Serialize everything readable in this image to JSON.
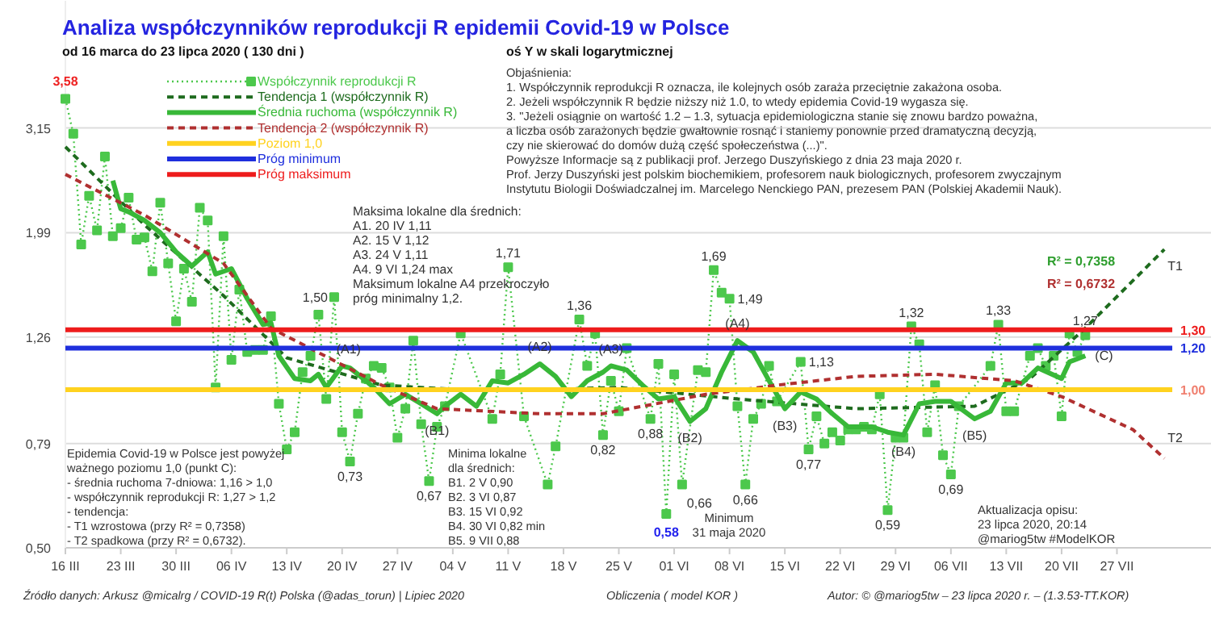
{
  "chart_data": {
    "type": "line",
    "title": "Analiza współczynników reprodukcji R epidemii Covid-19 w Polsce",
    "subtitle": "od 16 marca do 23 lipca 2020    ( 130 dni )",
    "log": true,
    "grid": "y",
    "legend": "top left",
    "xlim": [
      "2020-03-16",
      "2020-08-08"
    ],
    "ylim": [
      0.5,
      5.5
    ],
    "xticks": [
      {
        "value": "2020-03-16",
        "label": "16 III"
      },
      {
        "value": "2020-03-23",
        "label": "23 III"
      },
      {
        "value": "2020-03-30",
        "label": "30 III"
      },
      {
        "value": "2020-04-06",
        "label": "06 IV"
      },
      {
        "value": "2020-04-13",
        "label": "13 IV"
      },
      {
        "value": "2020-04-20",
        "label": "20 IV"
      },
      {
        "value": "2020-04-27",
        "label": "27 IV"
      },
      {
        "value": "2020-05-04",
        "label": "04 V"
      },
      {
        "value": "2020-05-11",
        "label": "11 V"
      },
      {
        "value": "2020-05-18",
        "label": "18 V"
      },
      {
        "value": "2020-05-25",
        "label": "25 V"
      },
      {
        "value": "2020-06-01",
        "label": "01 VI"
      },
      {
        "value": "2020-06-08",
        "label": "08 VI"
      },
      {
        "value": "2020-06-15",
        "label": "15 VI"
      },
      {
        "value": "2020-06-22",
        "label": "22 VI"
      },
      {
        "value": "2020-06-29",
        "label": "29 VI"
      },
      {
        "value": "2020-07-06",
        "label": "06 VII"
      },
      {
        "value": "2020-07-13",
        "label": "13 VII"
      },
      {
        "value": "2020-07-20",
        "label": "20 VII"
      },
      {
        "value": "2020-07-27",
        "label": "27 VII"
      }
    ],
    "yticks": [
      {
        "value": 0.5,
        "label": "0,50"
      },
      {
        "value": 0.79,
        "label": "0,79"
      },
      {
        "value": 1.26,
        "label": "1,26"
      },
      {
        "value": 1.99,
        "label": "1,99"
      },
      {
        "value": 3.15,
        "label": "3,15"
      }
    ],
    "series": [
      {
        "name": "Współczynnik reprodukcji R",
        "color": "#4cc84c",
        "line_style": "dotted",
        "marker": "square",
        "x": [
          "2020-03-16",
          "2020-03-17",
          "2020-03-18",
          "2020-03-19",
          "2020-03-20",
          "2020-03-21",
          "2020-03-22",
          "2020-03-23",
          "2020-03-24",
          "2020-03-25",
          "2020-03-26",
          "2020-03-27",
          "2020-03-28",
          "2020-03-29",
          "2020-03-30",
          "2020-03-31",
          "2020-04-01",
          "2020-04-02",
          "2020-04-03",
          "2020-04-04",
          "2020-04-05",
          "2020-04-06",
          "2020-04-07",
          "2020-04-08",
          "2020-04-09",
          "2020-04-10",
          "2020-04-11",
          "2020-04-12",
          "2020-04-13",
          "2020-04-14",
          "2020-04-15",
          "2020-04-16",
          "2020-04-17",
          "2020-04-18",
          "2020-04-19",
          "2020-04-20",
          "2020-04-21",
          "2020-04-22",
          "2020-04-23",
          "2020-04-24",
          "2020-04-25",
          "2020-04-26",
          "2020-04-27",
          "2020-04-28",
          "2020-04-29",
          "2020-04-30",
          "2020-05-01",
          "2020-05-02",
          "2020-05-03",
          "2020-05-05",
          "2020-05-09",
          "2020-05-10",
          "2020-05-11",
          "2020-05-13",
          "2020-05-16",
          "2020-05-17",
          "2020-05-20",
          "2020-05-21",
          "2020-05-22",
          "2020-05-23",
          "2020-05-24",
          "2020-05-25",
          "2020-05-26",
          "2020-05-29",
          "2020-05-30",
          "2020-05-31",
          "2020-06-01",
          "2020-06-02",
          "2020-06-04",
          "2020-06-05",
          "2020-06-06",
          "2020-06-07",
          "2020-06-08",
          "2020-06-09",
          "2020-06-10",
          "2020-06-11",
          "2020-06-12",
          "2020-06-13",
          "2020-06-14",
          "2020-06-17",
          "2020-06-18",
          "2020-06-19",
          "2020-06-20",
          "2020-06-21",
          "2020-06-22",
          "2020-06-23",
          "2020-06-24",
          "2020-06-25",
          "2020-06-26",
          "2020-06-27",
          "2020-06-28",
          "2020-06-29",
          "2020-06-30",
          "2020-07-01",
          "2020-07-02",
          "2020-07-03",
          "2020-07-04",
          "2020-07-05",
          "2020-07-06",
          "2020-07-07",
          "2020-07-11",
          "2020-07-12",
          "2020-07-13",
          "2020-07-14",
          "2020-07-16",
          "2020-07-17",
          "2020-07-18",
          "2020-07-19",
          "2020-07-20",
          "2020-07-21",
          "2020-07-22",
          "2020-07-23"
        ],
        "values": [
          3.58,
          3.07,
          1.89,
          2.34,
          2.01,
          2.78,
          1.96,
          2.03,
          2.32,
          1.93,
          1.95,
          1.68,
          2.27,
          1.74,
          1.35,
          1.7,
          1.47,
          2.22,
          2.1,
          1.01,
          1.96,
          1.14,
          1.55,
          1.18,
          1.19,
          1.19,
          1.38,
          0.94,
          0.77,
          0.83,
          1.08,
          1.16,
          1.39,
          0.96,
          1.5,
          0.83,
          0.73,
          0.9,
          1.05,
          1.11,
          1.1,
          1.01,
          0.81,
          0.92,
          1.24,
          0.86,
          0.67,
          0.85,
          0.93,
          1.28,
          0.88,
          1.07,
          1.71,
          0.89,
          0.66,
          0.78,
          1.36,
          1.11,
          1.28,
          0.82,
          1.04,
          0.91,
          1.2,
          0.88,
          1.12,
          0.58,
          1.07,
          0.66,
          1.09,
          1.08,
          1.69,
          1.53,
          1.49,
          0.93,
          0.66,
          0.88,
          0.94,
          1.11,
          0.95,
          1.13,
          0.77,
          0.89,
          0.79,
          0.83,
          0.8,
          0.84,
          0.84,
          0.85,
          0.84,
          0.98,
          0.59,
          0.81,
          0.81,
          1.32,
          1.22,
          0.83,
          1.02,
          0.75,
          0.69,
          0.93,
          1.11,
          1.33,
          0.91,
          0.91,
          1.16,
          1.2,
          1.11,
          1.16,
          0.89,
          1.28,
          1.18,
          1.27
        ]
      },
      {
        "name": "Tendencja 1 (współczynnik R)",
        "color": "#1e6b1e",
        "line_style": "dashed",
        "x": [
          "2020-03-16",
          "2020-03-26",
          "2020-04-05",
          "2020-04-13",
          "2020-04-25",
          "2020-05-05",
          "2020-05-15",
          "2020-05-25",
          "2020-06-09",
          "2020-06-24",
          "2020-07-09",
          "2020-07-16",
          "2020-07-23",
          "2020-08-02"
        ],
        "values": [
          2.9,
          2.06,
          1.51,
          1.15,
          1.02,
          1.0,
          1.0,
          1.01,
          0.96,
          0.92,
          0.93,
          1.05,
          1.31,
          1.85
        ]
      },
      {
        "name": "Średnia ruchoma (współczynnik R)",
        "color": "#38b838",
        "line_style": "solid",
        "x": [
          "2020-03-22",
          "2020-03-23",
          "2020-03-24",
          "2020-03-26",
          "2020-03-28",
          "2020-03-30",
          "2020-04-01",
          "2020-04-03",
          "2020-04-04",
          "2020-04-06",
          "2020-04-08",
          "2020-04-10",
          "2020-04-11",
          "2020-04-12",
          "2020-04-14",
          "2020-04-16",
          "2020-04-17",
          "2020-04-18",
          "2020-04-20",
          "2020-04-21",
          "2020-04-23",
          "2020-04-24",
          "2020-04-26",
          "2020-04-28",
          "2020-04-30",
          "2020-05-02",
          "2020-05-03",
          "2020-05-05",
          "2020-05-07",
          "2020-05-09",
          "2020-05-11",
          "2020-05-13",
          "2020-05-15",
          "2020-05-17",
          "2020-05-19",
          "2020-05-21",
          "2020-05-23",
          "2020-05-24",
          "2020-05-26",
          "2020-05-28",
          "2020-05-30",
          "2020-06-01",
          "2020-06-03",
          "2020-06-05",
          "2020-06-07",
          "2020-06-09",
          "2020-06-11",
          "2020-06-13",
          "2020-06-15",
          "2020-06-17",
          "2020-06-19",
          "2020-06-21",
          "2020-06-23",
          "2020-06-26",
          "2020-06-28",
          "2020-06-30",
          "2020-07-02",
          "2020-07-04",
          "2020-07-06",
          "2020-07-09",
          "2020-07-11",
          "2020-07-13",
          "2020-07-15",
          "2020-07-17",
          "2020-07-20",
          "2020-07-21",
          "2020-07-23"
        ],
        "values": [
          2.5,
          2.21,
          2.18,
          2.1,
          1.99,
          1.83,
          1.72,
          1.83,
          1.66,
          1.7,
          1.49,
          1.33,
          1.34,
          1.16,
          1.05,
          1.04,
          1.07,
          1.01,
          1.11,
          1.1,
          1.04,
          1.01,
          0.94,
          0.98,
          0.94,
          0.9,
          0.93,
          0.98,
          0.93,
          1.04,
          1.03,
          1.07,
          1.12,
          1.06,
          0.97,
          1.04,
          1.08,
          1.11,
          1.09,
          1.02,
          0.96,
          0.97,
          0.87,
          0.92,
          1.08,
          1.24,
          1.18,
          1.04,
          0.92,
          0.99,
          0.96,
          0.9,
          0.85,
          0.85,
          0.83,
          0.82,
          0.94,
          0.95,
          0.95,
          0.88,
          0.91,
          1.03,
          1.03,
          1.1,
          1.05,
          1.13,
          1.16
        ]
      },
      {
        "name": "Tendencja 2 (współczynnik R)",
        "color": "#b03030",
        "line_style": "dashed",
        "x": [
          "2020-03-16",
          "2020-03-26",
          "2020-04-05",
          "2020-04-11",
          "2020-04-25",
          "2020-05-02",
          "2020-05-15",
          "2020-05-23",
          "2020-06-05",
          "2020-06-14",
          "2020-06-24",
          "2020-07-04",
          "2020-07-14",
          "2020-07-20",
          "2020-07-29",
          "2020-08-02"
        ],
        "values": [
          2.57,
          2.15,
          1.74,
          1.31,
          1.02,
          0.92,
          0.9,
          0.9,
          0.98,
          1.02,
          1.06,
          1.07,
          1.04,
          0.97,
          0.84,
          0.74
        ]
      },
      {
        "name": "Poziom 1,0",
        "color": "#ffd21f",
        "line_style": "solid",
        "x": [
          "2020-03-16",
          "2020-08-03"
        ],
        "values": [
          1.0,
          1.0
        ]
      },
      {
        "name": "Próg minimum",
        "color": "#1f2fdd",
        "line_style": "solid",
        "x": [
          "2020-03-16",
          "2020-08-03"
        ],
        "values": [
          1.2,
          1.2
        ]
      },
      {
        "name": "Próg maksimum",
        "color": "#ee1c1c",
        "line_style": "solid",
        "x": [
          "2020-03-16",
          "2020-08-03"
        ],
        "values": [
          1.3,
          1.3
        ]
      }
    ],
    "annotations": [
      "oś Y w skali logarytmicznej",
      "Objaśnienia:\n1. Współczynnik reprodukcji R oznacza, ile kolejnych osób zaraża przeciętnie zakażona osoba.\n2. Jeżeli współczynnik R będzie niższy niż 1.0, to wtedy epidemia Covid-19 wygasza się.\n3. \"Jeżeli osiągnie on wartość 1.2 – 1.3, sytuacja epidemiologiczna stanie się znowu bardzo poważna,\n    a liczba osób zarażonych będzie gwałtownie rosnąć i staniemy ponownie przed dramatyczną decyzją,\n    czy nie skierować do domów dużą część społeczeństwa (...)\".\nPowyższe Informacje są z publikacji prof. Jerzego Duszyńskiego z dnia 23 maja 2020 r.\nProf. Jerzy Duszyński jest polskim biochemikiem, profesorem nauk biologicznych, profesorem zwyczajnym\nInstytutu Biologii Doświadczalnej im. Marcelego Nenckiego PAN, prezesem PAN (Polskiej Akademii Nauk).",
      "Maksima lokalne dla średnich:\nA1.  20 IV    1,11\nA2.  15 V     1,12\nA3.  24 V     1,11\nA4.    9 VI   1,24 max\nMaksimum lokalne A4 przekroczyło\npróg minimalny 1,2.",
      "Epidemia Covid-19 w Polsce jest powyżej\nważnego poziomu 1,0 (punkt C):\n- średnia ruchoma 7-dniowa:     1,16 > 1,0\n- współczynnik reprodukcji R:  1,27 > 1,2\n- tendencja:\n    - T1 wzrostowa     (przy R² = 0,7358)\n    - T2 spadkowa      (przy R² = 0,6732).",
      "Minima lokalne\ndla średnich:\nB1.   2 V    0,90\nB2.   3 VI   0,87\nB3. 15 VI   0,92\nB4. 30 VI   0,82 min\nB5.   9 VII  0,88",
      "Minimum\n31 maja 2020",
      "Aktualizacja opisu:\n23 lipca 2020, 20:14\n@mariog5tw  #ModelKOR",
      "R² = 0,7358",
      "R² = 0,6732",
      {
        "text": "T1",
        "x": "2020-08-02",
        "y": 1.85
      },
      {
        "text": "T2",
        "x": "2020-08-02",
        "y": 0.74
      },
      "Źródło danych: Arkusz @micalrg / COVID-19 R(t) Polska (@adas_torun)  |  Lipiec 2020",
      "Obliczenia ( model KOR )",
      "Autor:  © @mariog5tw – 23 lipca 2020 r. – (1.3.53-TT.KOR)",
      {
        "text": "3,58",
        "x": "2020-03-16",
        "y": 3.58
      },
      {
        "text": "1,50",
        "x": "2020-04-19",
        "y": 1.5
      },
      {
        "text": "0,73",
        "x": "2020-04-21",
        "y": 0.73
      },
      {
        "text": "0,67",
        "x": "2020-05-01",
        "y": 0.67
      },
      {
        "text": "1,71",
        "x": "2020-05-11",
        "y": 1.71
      },
      {
        "text": "1,36",
        "x": "2020-05-20",
        "y": 1.36
      },
      {
        "text": "0,82",
        "x": "2020-05-23",
        "y": 0.82
      },
      {
        "text": "0,88",
        "x": "2020-05-29",
        "y": 0.88
      },
      {
        "text": "0,58",
        "x": "2020-05-31",
        "y": 0.58
      },
      {
        "text": "0,66",
        "x": "2020-06-02",
        "y": 0.66
      },
      {
        "text": "1,69",
        "x": "2020-06-06",
        "y": 1.69
      },
      {
        "text": "1,49",
        "x": "2020-06-08",
        "y": 1.49
      },
      {
        "text": "0,66",
        "x": "2020-06-10",
        "y": 0.66
      },
      {
        "text": "1,13",
        "x": "2020-06-17",
        "y": 1.13
      },
      {
        "text": "0,77",
        "x": "2020-06-18",
        "y": 0.77
      },
      {
        "text": "0,59",
        "x": "2020-06-28",
        "y": 0.59
      },
      {
        "text": "1,32",
        "x": "2020-07-01",
        "y": 1.32
      },
      {
        "text": "1,33",
        "x": "2020-07-12",
        "y": 1.33
      },
      {
        "text": "0,69",
        "x": "2020-07-06",
        "y": 0.69
      },
      {
        "text": "1,27",
        "x": "2020-07-23",
        "y": 1.27
      },
      {
        "text": "(A1)",
        "x": "2020-04-20",
        "y": 1.11
      },
      {
        "text": "(A2)",
        "x": "2020-05-15",
        "y": 1.12
      },
      {
        "text": "(A3)",
        "x": "2020-05-24",
        "y": 1.11
      },
      {
        "text": "(A4)",
        "x": "2020-06-09",
        "y": 1.24
      },
      {
        "text": "(B1)",
        "x": "2020-05-02",
        "y": 0.9
      },
      {
        "text": "(B2)",
        "x": "2020-06-03",
        "y": 0.87
      },
      {
        "text": "(B3)",
        "x": "2020-06-15",
        "y": 0.92
      },
      {
        "text": "(B4)",
        "x": "2020-06-30",
        "y": 0.82
      },
      {
        "text": "(B5)",
        "x": "2020-07-09",
        "y": 0.88
      },
      {
        "text": "(C)",
        "x": "2020-07-23",
        "y": 1.16
      },
      {
        "text": "1,00",
        "x": "2020-08-03",
        "y": 1.0
      },
      {
        "text": "1,20",
        "x": "2020-08-03",
        "y": 1.2
      },
      {
        "text": "1,30",
        "x": "2020-08-03",
        "y": 1.3
      }
    ]
  }
}
